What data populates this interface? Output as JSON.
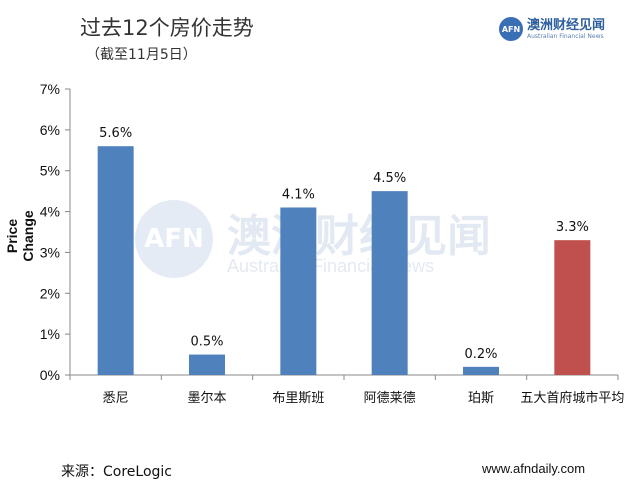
{
  "header": {
    "title": "过去12个房价走势",
    "subtitle": "（截至11月5日）",
    "logo_badge": "AFN",
    "logo_name": "澳洲财经见闻",
    "logo_tagline": "Australian Financial News"
  },
  "watermark": {
    "badge": "AFN",
    "name": "澳洲财经见闻",
    "tagline": "Australian Financial News"
  },
  "footer": {
    "source": "来源：CoreLogic",
    "website": "www.afndaily.com"
  },
  "colors": {
    "bar": "#4f81bd",
    "highlight": "#c0504d",
    "grid": "#d9d9d9",
    "axis": "#888888"
  },
  "chart_data": {
    "type": "bar",
    "title": "",
    "xlabel": "",
    "ylabel": "Price Change",
    "categories": [
      "悉尼",
      "墨尔本",
      "布里斯班",
      "阿德莱德",
      "珀斯",
      "五大首府城市平均"
    ],
    "values": [
      5.6,
      0.5,
      4.1,
      4.5,
      0.2,
      3.3
    ],
    "data_labels": [
      "5.6%",
      "0.5%",
      "4.1%",
      "4.5%",
      "0.2%",
      "3.3%"
    ],
    "highlight_index": 5,
    "ylim": [
      0,
      7
    ],
    "yticks": [
      "0%",
      "1%",
      "2%",
      "3%",
      "4%",
      "5%",
      "6%",
      "7%"
    ],
    "grid": false,
    "legend": "none"
  }
}
